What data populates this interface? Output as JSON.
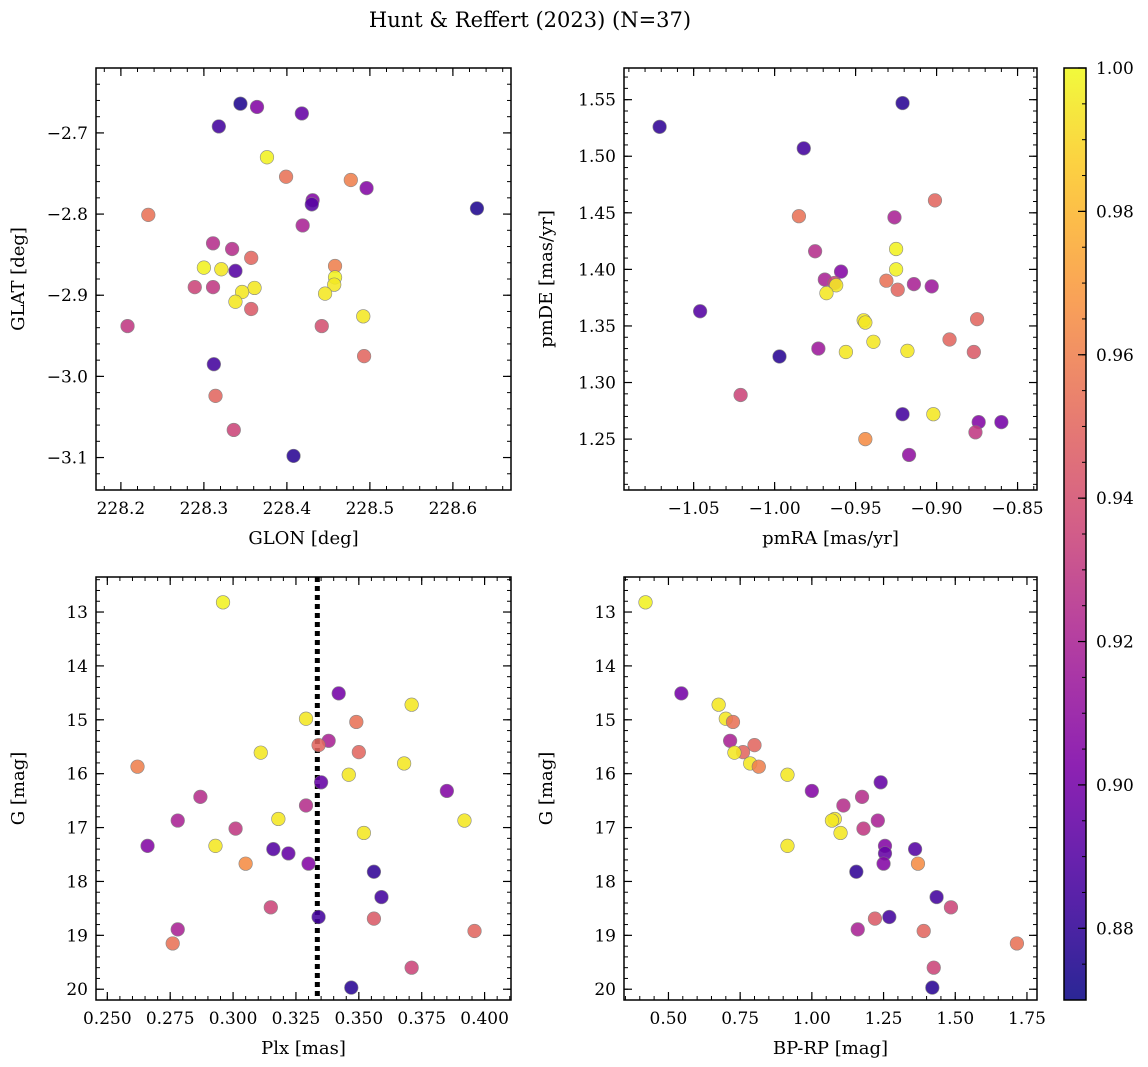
{
  "figure": {
    "title": "Hunt & Reffert (2023) (N=37)"
  },
  "colorbar": {
    "min": 0.87,
    "max": 1.0,
    "ticks": [
      0.88,
      0.9,
      0.92,
      0.94,
      0.96,
      0.98,
      1.0
    ],
    "tick_labels": [
      "0.88",
      "0.90",
      "0.92",
      "0.94",
      "0.96",
      "0.98",
      "1.00"
    ],
    "colormap": "plasma"
  },
  "chart_data": [
    {
      "type": "scatter",
      "xlabel": "GLON [deg]",
      "ylabel": "GLAT [deg]",
      "xlim": [
        228.17,
        228.67
      ],
      "ylim": [
        -3.14,
        -2.62
      ],
      "x_ticks": [
        228.2,
        228.3,
        228.4,
        228.5,
        228.6
      ],
      "x_tick_labels": [
        "228.2",
        "228.3",
        "228.4",
        "228.5",
        "228.6"
      ],
      "y_ticks": [
        -3.1,
        -3.0,
        -2.9,
        -2.8,
        -2.7
      ],
      "y_tick_labels": [
        "−3.1",
        "−3.0",
        "−2.9",
        "−2.8",
        "−2.7"
      ],
      "invert_y": false,
      "points": [
        {
          "x": 228.344,
          "y": -2.664,
          "c": 0.875
        },
        {
          "x": 228.364,
          "y": -2.668,
          "c": 0.905
        },
        {
          "x": 228.318,
          "y": -2.692,
          "c": 0.885
        },
        {
          "x": 228.418,
          "y": -2.676,
          "c": 0.895
        },
        {
          "x": 228.376,
          "y": -2.73,
          "c": 0.998
        },
        {
          "x": 228.399,
          "y": -2.754,
          "c": 0.955
        },
        {
          "x": 228.477,
          "y": -2.758,
          "c": 0.96
        },
        {
          "x": 228.496,
          "y": -2.768,
          "c": 0.905
        },
        {
          "x": 228.431,
          "y": -2.783,
          "c": 0.905
        },
        {
          "x": 228.43,
          "y": -2.788,
          "c": 0.89
        },
        {
          "x": 228.629,
          "y": -2.793,
          "c": 0.875
        },
        {
          "x": 228.233,
          "y": -2.801,
          "c": 0.955
        },
        {
          "x": 228.419,
          "y": -2.814,
          "c": 0.92
        },
        {
          "x": 228.311,
          "y": -2.836,
          "c": 0.925
        },
        {
          "x": 228.334,
          "y": -2.843,
          "c": 0.925
        },
        {
          "x": 228.357,
          "y": -2.854,
          "c": 0.95
        },
        {
          "x": 228.458,
          "y": -2.864,
          "c": 0.96
        },
        {
          "x": 228.3,
          "y": -2.866,
          "c": 0.998
        },
        {
          "x": 228.321,
          "y": -2.868,
          "c": 0.995
        },
        {
          "x": 228.338,
          "y": -2.87,
          "c": 0.89
        },
        {
          "x": 228.458,
          "y": -2.878,
          "c": 0.998
        },
        {
          "x": 228.289,
          "y": -2.89,
          "c": 0.935
        },
        {
          "x": 228.311,
          "y": -2.89,
          "c": 0.93
        },
        {
          "x": 228.457,
          "y": -2.887,
          "c": 0.995
        },
        {
          "x": 228.361,
          "y": -2.891,
          "c": 0.995
        },
        {
          "x": 228.346,
          "y": -2.896,
          "c": 0.995
        },
        {
          "x": 228.446,
          "y": -2.898,
          "c": 0.995
        },
        {
          "x": 228.338,
          "y": -2.908,
          "c": 0.995
        },
        {
          "x": 228.357,
          "y": -2.917,
          "c": 0.945
        },
        {
          "x": 228.492,
          "y": -2.926,
          "c": 0.995
        },
        {
          "x": 228.208,
          "y": -2.938,
          "c": 0.93
        },
        {
          "x": 228.442,
          "y": -2.938,
          "c": 0.94
        },
        {
          "x": 228.493,
          "y": -2.975,
          "c": 0.95
        },
        {
          "x": 228.312,
          "y": -2.985,
          "c": 0.885
        },
        {
          "x": 228.314,
          "y": -3.024,
          "c": 0.95
        },
        {
          "x": 228.336,
          "y": -3.066,
          "c": 0.935
        },
        {
          "x": 228.408,
          "y": -3.098,
          "c": 0.878
        }
      ]
    },
    {
      "type": "scatter",
      "xlabel": "pmRA [mas/yr]",
      "ylabel": "pmDE [mas/yr]",
      "xlim": [
        -1.093,
        -0.838
      ],
      "ylim": [
        1.205,
        1.578
      ],
      "x_ticks": [
        -1.05,
        -1.0,
        -0.95,
        -0.9,
        -0.85
      ],
      "x_tick_labels": [
        "−1.05",
        "−1.00",
        "−0.95",
        "−0.90",
        "−0.85"
      ],
      "y_ticks": [
        1.25,
        1.3,
        1.35,
        1.4,
        1.45,
        1.5,
        1.55
      ],
      "y_tick_labels": [
        "1.25",
        "1.30",
        "1.35",
        "1.40",
        "1.45",
        "1.50",
        "1.55"
      ],
      "invert_y": false,
      "points": [
        {
          "x": -0.921,
          "y": 1.547,
          "c": 0.878
        },
        {
          "x": -1.071,
          "y": 1.526,
          "c": 0.88
        },
        {
          "x": -0.982,
          "y": 1.507,
          "c": 0.885
        },
        {
          "x": -0.901,
          "y": 1.461,
          "c": 0.95
        },
        {
          "x": -0.985,
          "y": 1.447,
          "c": 0.955
        },
        {
          "x": -0.926,
          "y": 1.446,
          "c": 0.92
        },
        {
          "x": -0.925,
          "y": 1.418,
          "c": 0.998
        },
        {
          "x": -0.975,
          "y": 1.416,
          "c": 0.925
        },
        {
          "x": -0.925,
          "y": 1.4,
          "c": 0.998
        },
        {
          "x": -0.959,
          "y": 1.398,
          "c": 0.905
        },
        {
          "x": -0.969,
          "y": 1.391,
          "c": 0.92
        },
        {
          "x": -0.931,
          "y": 1.39,
          "c": 0.955
        },
        {
          "x": -0.963,
          "y": 1.388,
          "c": 0.935
        },
        {
          "x": -0.914,
          "y": 1.387,
          "c": 0.92
        },
        {
          "x": -0.962,
          "y": 1.386,
          "c": 0.995
        },
        {
          "x": -0.903,
          "y": 1.385,
          "c": 0.915
        },
        {
          "x": -0.924,
          "y": 1.382,
          "c": 0.95
        },
        {
          "x": -0.968,
          "y": 1.379,
          "c": 0.995
        },
        {
          "x": -1.046,
          "y": 1.363,
          "c": 0.89
        },
        {
          "x": -0.875,
          "y": 1.356,
          "c": 0.95
        },
        {
          "x": -0.945,
          "y": 1.355,
          "c": 0.995
        },
        {
          "x": -0.944,
          "y": 1.353,
          "c": 0.995
        },
        {
          "x": -0.892,
          "y": 1.338,
          "c": 0.95
        },
        {
          "x": -0.939,
          "y": 1.336,
          "c": 0.995
        },
        {
          "x": -0.973,
          "y": 1.33,
          "c": 0.915
        },
        {
          "x": -0.918,
          "y": 1.328,
          "c": 0.995
        },
        {
          "x": -0.956,
          "y": 1.327,
          "c": 0.995
        },
        {
          "x": -0.877,
          "y": 1.327,
          "c": 0.945
        },
        {
          "x": -0.997,
          "y": 1.323,
          "c": 0.878
        },
        {
          "x": -1.021,
          "y": 1.289,
          "c": 0.935
        },
        {
          "x": -0.921,
          "y": 1.272,
          "c": 0.885
        },
        {
          "x": -0.902,
          "y": 1.272,
          "c": 0.995
        },
        {
          "x": -0.874,
          "y": 1.265,
          "c": 0.905
        },
        {
          "x": -0.86,
          "y": 1.265,
          "c": 0.9
        },
        {
          "x": -0.876,
          "y": 1.256,
          "c": 0.93
        },
        {
          "x": -0.944,
          "y": 1.25,
          "c": 0.965
        },
        {
          "x": -0.917,
          "y": 1.236,
          "c": 0.91
        }
      ]
    },
    {
      "type": "scatter",
      "xlabel": "Plx [mas]",
      "ylabel": "G [mag]",
      "xlim": [
        0.2455,
        0.4105
      ],
      "ylim": [
        20.2,
        12.35
      ],
      "x_ticks": [
        0.25,
        0.275,
        0.3,
        0.325,
        0.35,
        0.375,
        0.4
      ],
      "x_tick_labels": [
        "0.250",
        "0.275",
        "0.300",
        "0.325",
        "0.350",
        "0.375",
        "0.400"
      ],
      "y_ticks": [
        13,
        14,
        15,
        16,
        17,
        18,
        19,
        20
      ],
      "y_tick_labels": [
        "13",
        "14",
        "15",
        "16",
        "17",
        "18",
        "19",
        "20"
      ],
      "invert_y": true,
      "vline": {
        "x": 0.3335,
        "style": "dotted"
      },
      "points": [
        {
          "x": 0.296,
          "y": 12.82,
          "c": 0.998
        },
        {
          "x": 0.342,
          "y": 14.51,
          "c": 0.9
        },
        {
          "x": 0.371,
          "y": 14.72,
          "c": 0.995
        },
        {
          "x": 0.329,
          "y": 14.98,
          "c": 0.995
        },
        {
          "x": 0.349,
          "y": 15.04,
          "c": 0.955
        },
        {
          "x": 0.338,
          "y": 15.39,
          "c": 0.92
        },
        {
          "x": 0.334,
          "y": 15.47,
          "c": 0.95
        },
        {
          "x": 0.35,
          "y": 15.6,
          "c": 0.95
        },
        {
          "x": 0.311,
          "y": 15.61,
          "c": 0.995
        },
        {
          "x": 0.368,
          "y": 15.81,
          "c": 0.995
        },
        {
          "x": 0.262,
          "y": 15.87,
          "c": 0.96
        },
        {
          "x": 0.346,
          "y": 16.02,
          "c": 0.995
        },
        {
          "x": 0.335,
          "y": 16.16,
          "c": 0.895
        },
        {
          "x": 0.385,
          "y": 16.32,
          "c": 0.905
        },
        {
          "x": 0.287,
          "y": 16.43,
          "c": 0.925
        },
        {
          "x": 0.329,
          "y": 16.59,
          "c": 0.925
        },
        {
          "x": 0.318,
          "y": 16.84,
          "c": 0.995
        },
        {
          "x": 0.278,
          "y": 16.87,
          "c": 0.92
        },
        {
          "x": 0.392,
          "y": 16.87,
          "c": 0.995
        },
        {
          "x": 0.301,
          "y": 17.02,
          "c": 0.93
        },
        {
          "x": 0.352,
          "y": 17.1,
          "c": 0.995
        },
        {
          "x": 0.266,
          "y": 17.34,
          "c": 0.905
        },
        {
          "x": 0.293,
          "y": 17.34,
          "c": 0.995
        },
        {
          "x": 0.316,
          "y": 17.4,
          "c": 0.89
        },
        {
          "x": 0.322,
          "y": 17.48,
          "c": 0.895
        },
        {
          "x": 0.305,
          "y": 17.67,
          "c": 0.965
        },
        {
          "x": 0.33,
          "y": 17.67,
          "c": 0.905
        },
        {
          "x": 0.356,
          "y": 17.82,
          "c": 0.88
        },
        {
          "x": 0.359,
          "y": 18.29,
          "c": 0.885
        },
        {
          "x": 0.315,
          "y": 18.48,
          "c": 0.935
        },
        {
          "x": 0.334,
          "y": 18.66,
          "c": 0.885
        },
        {
          "x": 0.356,
          "y": 18.69,
          "c": 0.945
        },
        {
          "x": 0.278,
          "y": 18.89,
          "c": 0.92
        },
        {
          "x": 0.396,
          "y": 18.92,
          "c": 0.95
        },
        {
          "x": 0.276,
          "y": 19.15,
          "c": 0.955
        },
        {
          "x": 0.371,
          "y": 19.6,
          "c": 0.935
        },
        {
          "x": 0.347,
          "y": 19.97,
          "c": 0.878
        }
      ]
    },
    {
      "type": "scatter",
      "xlabel": "BP-RP [mag]",
      "ylabel": "G [mag]",
      "xlim": [
        0.345,
        1.785
      ],
      "ylim": [
        20.2,
        12.35
      ],
      "x_ticks": [
        0.5,
        0.75,
        1.0,
        1.25,
        1.5,
        1.75
      ],
      "x_tick_labels": [
        "0.50",
        "0.75",
        "1.00",
        "1.25",
        "1.50",
        "1.75"
      ],
      "y_ticks": [
        13,
        14,
        15,
        16,
        17,
        18,
        19,
        20
      ],
      "y_tick_labels": [
        "13",
        "14",
        "15",
        "16",
        "17",
        "18",
        "19",
        "20"
      ],
      "invert_y": true,
      "points": [
        {
          "x": 0.42,
          "y": 12.82,
          "c": 0.998
        },
        {
          "x": 0.545,
          "y": 14.51,
          "c": 0.9
        },
        {
          "x": 0.675,
          "y": 14.72,
          "c": 0.995
        },
        {
          "x": 0.7,
          "y": 14.98,
          "c": 0.995
        },
        {
          "x": 0.725,
          "y": 15.04,
          "c": 0.955
        },
        {
          "x": 0.715,
          "y": 15.39,
          "c": 0.92
        },
        {
          "x": 0.8,
          "y": 15.47,
          "c": 0.95
        },
        {
          "x": 0.76,
          "y": 15.6,
          "c": 0.95
        },
        {
          "x": 0.73,
          "y": 15.61,
          "c": 0.995
        },
        {
          "x": 0.785,
          "y": 15.81,
          "c": 0.995
        },
        {
          "x": 0.815,
          "y": 15.87,
          "c": 0.96
        },
        {
          "x": 0.915,
          "y": 16.02,
          "c": 0.995
        },
        {
          "x": 1.24,
          "y": 16.16,
          "c": 0.895
        },
        {
          "x": 1.0,
          "y": 16.32,
          "c": 0.905
        },
        {
          "x": 1.175,
          "y": 16.43,
          "c": 0.925
        },
        {
          "x": 1.11,
          "y": 16.59,
          "c": 0.925
        },
        {
          "x": 1.08,
          "y": 16.84,
          "c": 0.995
        },
        {
          "x": 1.23,
          "y": 16.87,
          "c": 0.92
        },
        {
          "x": 1.07,
          "y": 16.87,
          "c": 0.995
        },
        {
          "x": 1.18,
          "y": 17.02,
          "c": 0.93
        },
        {
          "x": 1.1,
          "y": 17.1,
          "c": 0.995
        },
        {
          "x": 1.255,
          "y": 17.34,
          "c": 0.905
        },
        {
          "x": 0.915,
          "y": 17.34,
          "c": 0.995
        },
        {
          "x": 1.36,
          "y": 17.4,
          "c": 0.89
        },
        {
          "x": 1.255,
          "y": 17.48,
          "c": 0.895
        },
        {
          "x": 1.37,
          "y": 17.67,
          "c": 0.965
        },
        {
          "x": 1.25,
          "y": 17.67,
          "c": 0.905
        },
        {
          "x": 1.155,
          "y": 17.82,
          "c": 0.88
        },
        {
          "x": 1.435,
          "y": 18.29,
          "c": 0.885
        },
        {
          "x": 1.485,
          "y": 18.48,
          "c": 0.935
        },
        {
          "x": 1.27,
          "y": 18.66,
          "c": 0.885
        },
        {
          "x": 1.22,
          "y": 18.69,
          "c": 0.945
        },
        {
          "x": 1.16,
          "y": 18.89,
          "c": 0.92
        },
        {
          "x": 1.39,
          "y": 18.92,
          "c": 0.95
        },
        {
          "x": 1.715,
          "y": 19.15,
          "c": 0.955
        },
        {
          "x": 1.425,
          "y": 19.6,
          "c": 0.935
        },
        {
          "x": 1.42,
          "y": 19.97,
          "c": 0.878
        }
      ]
    }
  ]
}
